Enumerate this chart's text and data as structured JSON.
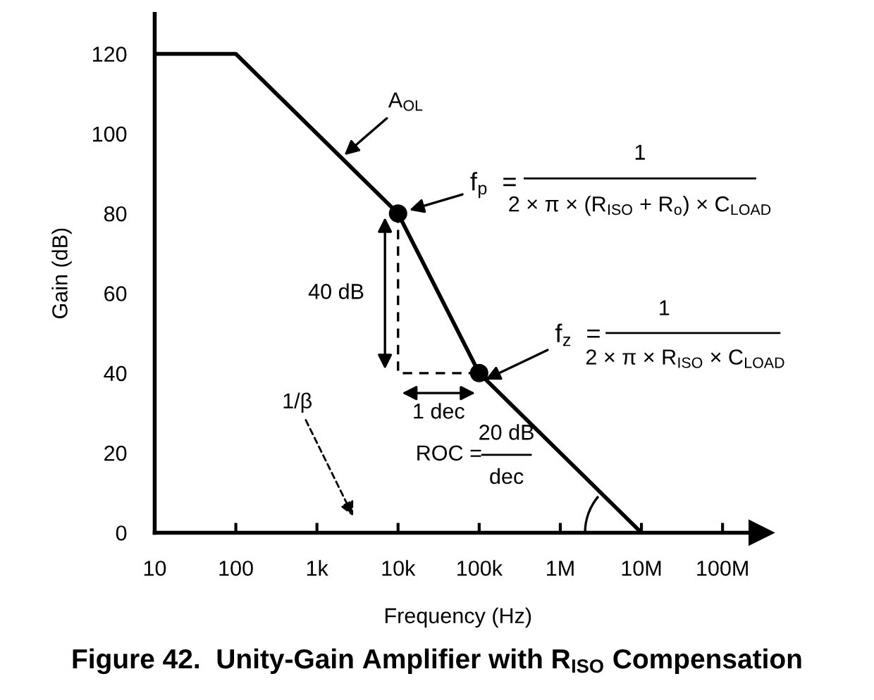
{
  "chart_data": {
    "type": "line",
    "title": "Figure 42.  Unity-Gain Amplifier with R$_{ISO}$ Compensation",
    "xlabel": "Frequency (Hz)",
    "ylabel": "Gain (dB)",
    "log": "x",
    "xlim": [
      10,
      300000000
    ],
    "ylim": [
      0,
      130
    ],
    "xticks": [
      10,
      100,
      {
        "value": 1000,
        "label": "1k"
      },
      {
        "value": 10000,
        "label": "10k"
      },
      {
        "value": 100000,
        "label": "100k"
      },
      {
        "value": 1000000,
        "label": "1M"
      },
      {
        "value": 10000000,
        "label": "10M"
      },
      {
        "value": 100000000,
        "label": "100M"
      }
    ],
    "yticks": [
      0,
      20,
      40,
      60,
      80,
      100,
      120
    ],
    "series": [
      {
        "color": "#000000",
        "line_style": "solid",
        "marker": "none",
        "x": [
          10,
          100,
          10000,
          100000,
          10000000
        ],
        "values": [
          120,
          120,
          80,
          40,
          0
        ]
      },
      {
        "type": "line",
        "color": "#000000",
        "line_style": "dashed",
        "marker": "none",
        "x": [
          10000,
          10000,
          100000
        ],
        "values": [
          80,
          40,
          40
        ]
      },
      {
        "type": "scatter",
        "color": "#000000",
        "marker": "circle",
        "x": [
          10000,
          100000
        ],
        "values": [
          80,
          40
        ]
      }
    ],
    "annotations": [
      {
        "text": "A$_{OL}$",
        "x": 2000,
        "y": 94
      },
      {
        "text": "f$_{p}$  =",
        "x": 10000,
        "y": 80
      },
      "1",
      "2 × π × (R$_{ISO}$ + R$_{o}$) × C$_{LOAD}$",
      {
        "text": "f$_{z}$  =",
        "x": 120000,
        "y": 38.4
      },
      "1",
      "2 × π × R$_{ISO}$ × C$_{LOAD}$",
      "40 dB",
      "1 dec",
      "1/β",
      "ROC =",
      "20 dB",
      "dec"
    ]
  }
}
